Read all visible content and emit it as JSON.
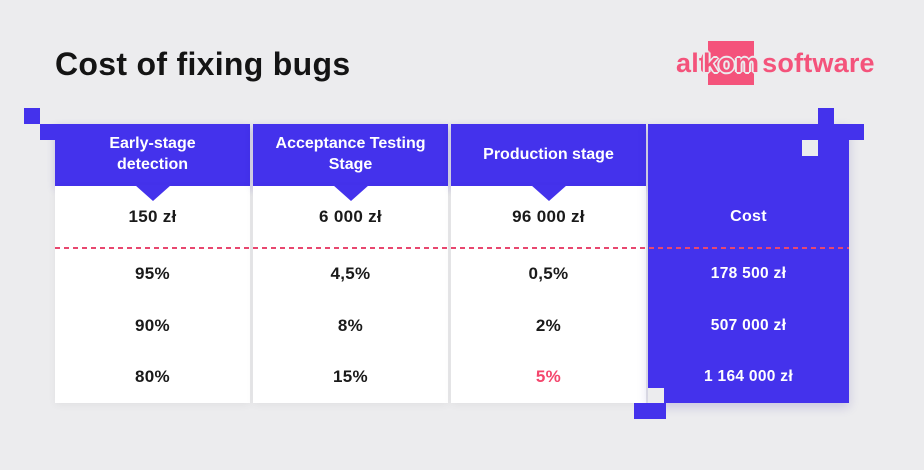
{
  "title": "Cost of fixing bugs",
  "logo": {
    "alt": "alt",
    "kom": "kom",
    "software": "software"
  },
  "colors": {
    "background": "#ececee",
    "primary_blue": "#4432ec",
    "accent_pink": "#f4537b",
    "highlight_red": "#f4476d",
    "dash_line_pink": "#e8476f",
    "text_dark": "#1a1a1a"
  },
  "table": {
    "stage_columns": [
      {
        "header": "Early-stage detection",
        "unit_cost": "150 zł",
        "percents": [
          "95%",
          "90%",
          "80%"
        ]
      },
      {
        "header": "Acceptance Testing Stage",
        "unit_cost": "6 000 zł",
        "percents": [
          "4,5%",
          "8%",
          "15%"
        ]
      },
      {
        "header": "Production stage",
        "unit_cost": "96 000 zł",
        "percents": [
          "0,5%",
          "2%",
          "5%"
        ]
      }
    ],
    "cost_column": {
      "header": "Cost",
      "totals": [
        "178 500 zł",
        "507 000 zł",
        "1 164 000 zł"
      ]
    },
    "highlighted_value": "5%"
  },
  "chart_data": {
    "type": "table",
    "title": "Cost of fixing bugs",
    "columns": [
      "Early-stage detection",
      "Acceptance Testing Stage",
      "Production stage",
      "Cost"
    ],
    "unit_cost_per_bug": {
      "early_stage": "150 zł",
      "acceptance_testing": "6 000 zł",
      "production": "96 000 zł"
    },
    "rows": [
      {
        "early_stage": "95%",
        "acceptance_testing": "4,5%",
        "production": "0,5%",
        "cost": "178 500 zł"
      },
      {
        "early_stage": "90%",
        "acceptance_testing": "8%",
        "production": "2%",
        "cost": "507 000 zł"
      },
      {
        "early_stage": "80%",
        "acceptance_testing": "15%",
        "production": "5%",
        "cost": "1 164 000 zł"
      }
    ],
    "notes": "Production-stage 5% in final row is highlighted in pink/red"
  }
}
